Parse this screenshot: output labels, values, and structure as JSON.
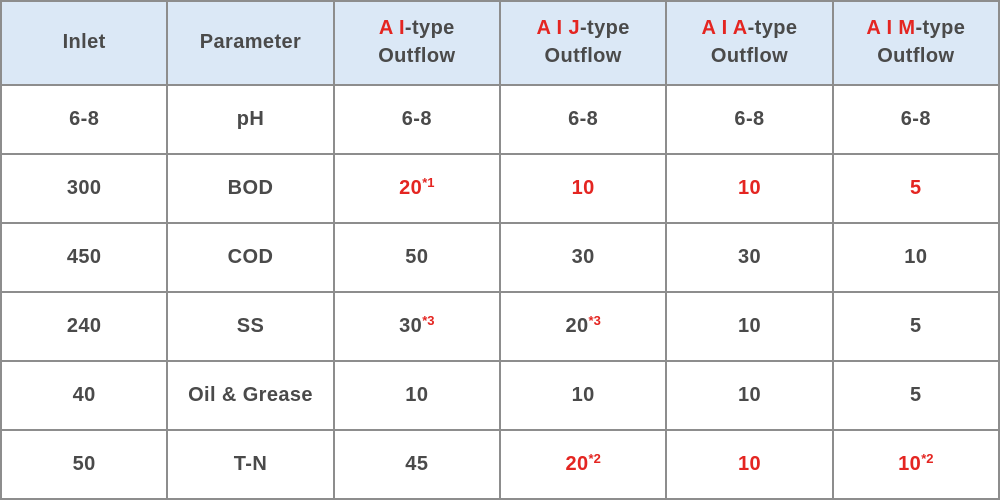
{
  "colors": {
    "header_bg": "#dbe8f6",
    "row_bg": "#ffffff",
    "border": "#8d8d8d",
    "text_dark": "#4a4a4a",
    "text_red": "#e42521"
  },
  "table": {
    "columns": [
      {
        "name": "inlet",
        "header_lines": [
          [
            {
              "t": "Inlet",
              "c": "dark"
            }
          ]
        ]
      },
      {
        "name": "parameter",
        "header_lines": [
          [
            {
              "t": "Parameter",
              "c": "dark"
            }
          ]
        ]
      },
      {
        "name": "ai-type-outflow",
        "header_lines": [
          [
            {
              "t": "A I",
              "c": "red"
            },
            {
              "t": "-type",
              "c": "dark"
            }
          ],
          [
            {
              "t": "Outflow",
              "c": "dark"
            }
          ]
        ]
      },
      {
        "name": "aij-type-outflow",
        "header_lines": [
          [
            {
              "t": "A I J",
              "c": "red"
            },
            {
              "t": "-type",
              "c": "dark"
            }
          ],
          [
            {
              "t": "Outflow",
              "c": "dark"
            }
          ]
        ]
      },
      {
        "name": "aia-type-outflow",
        "header_lines": [
          [
            {
              "t": "A I A",
              "c": "red"
            },
            {
              "t": "-type",
              "c": "dark"
            }
          ],
          [
            {
              "t": "Outflow",
              "c": "dark"
            }
          ]
        ]
      },
      {
        "name": "aim-type-outflow",
        "header_lines": [
          [
            {
              "t": "A I M",
              "c": "red"
            },
            {
              "t": "-type",
              "c": "dark"
            }
          ],
          [
            {
              "t": "Outflow",
              "c": "dark"
            }
          ]
        ]
      }
    ],
    "rows": [
      {
        "name": "ph",
        "cells": [
          {
            "t": "6-8",
            "c": "dark"
          },
          {
            "t": "pH",
            "c": "dark"
          },
          {
            "t": "6-8",
            "c": "dark"
          },
          {
            "t": "6-8",
            "c": "dark"
          },
          {
            "t": "6-8",
            "c": "dark"
          },
          {
            "t": "6-8",
            "c": "dark"
          }
        ]
      },
      {
        "name": "bod",
        "cells": [
          {
            "t": "300",
            "c": "dark"
          },
          {
            "t": "BOD",
            "c": "dark"
          },
          {
            "t": "20",
            "c": "red",
            "sup": "*1",
            "sup_c": "red"
          },
          {
            "t": "10",
            "c": "red"
          },
          {
            "t": "10",
            "c": "red"
          },
          {
            "t": "5",
            "c": "red"
          }
        ]
      },
      {
        "name": "cod",
        "cells": [
          {
            "t": "450",
            "c": "dark"
          },
          {
            "t": "COD",
            "c": "dark"
          },
          {
            "t": "50",
            "c": "dark"
          },
          {
            "t": "30",
            "c": "dark"
          },
          {
            "t": "30",
            "c": "dark"
          },
          {
            "t": "10",
            "c": "dark"
          }
        ]
      },
      {
        "name": "ss",
        "cells": [
          {
            "t": "240",
            "c": "dark"
          },
          {
            "t": "SS",
            "c": "dark"
          },
          {
            "t": "30",
            "c": "dark",
            "sup": "*3",
            "sup_c": "red"
          },
          {
            "t": "20",
            "c": "dark",
            "sup": "*3",
            "sup_c": "red"
          },
          {
            "t": "10",
            "c": "dark"
          },
          {
            "t": "5",
            "c": "dark"
          }
        ]
      },
      {
        "name": "oil-grease",
        "cells": [
          {
            "t": "40",
            "c": "dark"
          },
          {
            "t": "Oil & Grease",
            "c": "dark"
          },
          {
            "t": "10",
            "c": "dark"
          },
          {
            "t": "10",
            "c": "dark"
          },
          {
            "t": "10",
            "c": "dark"
          },
          {
            "t": "5",
            "c": "dark"
          }
        ]
      },
      {
        "name": "t-n",
        "cells": [
          {
            "t": "50",
            "c": "dark"
          },
          {
            "t": "T-N",
            "c": "dark"
          },
          {
            "t": "45",
            "c": "dark"
          },
          {
            "t": "20",
            "c": "red",
            "sup": "*2",
            "sup_c": "red"
          },
          {
            "t": "10",
            "c": "red"
          },
          {
            "t": "10",
            "c": "red",
            "sup": "*2",
            "sup_c": "red"
          }
        ]
      }
    ]
  },
  "chart_data": {
    "type": "table",
    "columns": [
      "Inlet",
      "Parameter",
      "A I-type Outflow",
      "A I J-type Outflow",
      "A I A-type Outflow",
      "A I M-type Outflow"
    ],
    "rows": [
      [
        "6-8",
        "pH",
        "6-8",
        "6-8",
        "6-8",
        "6-8"
      ],
      [
        "300",
        "BOD",
        "20*1",
        "10",
        "10",
        "5"
      ],
      [
        "450",
        "COD",
        "50",
        "30",
        "30",
        "10"
      ],
      [
        "240",
        "SS",
        "30*3",
        "20*3",
        "10",
        "5"
      ],
      [
        "40",
        "Oil & Grease",
        "10",
        "10",
        "10",
        "5"
      ],
      [
        "50",
        "T-N",
        "45",
        "20*2",
        "10",
        "10*2"
      ]
    ],
    "footnote_markers_red": [
      "*1",
      "*2",
      "*3"
    ],
    "red_value_cells": [
      "BOD row outflow values",
      "T-N row AIJ/AIA/AIM outflow values"
    ]
  }
}
